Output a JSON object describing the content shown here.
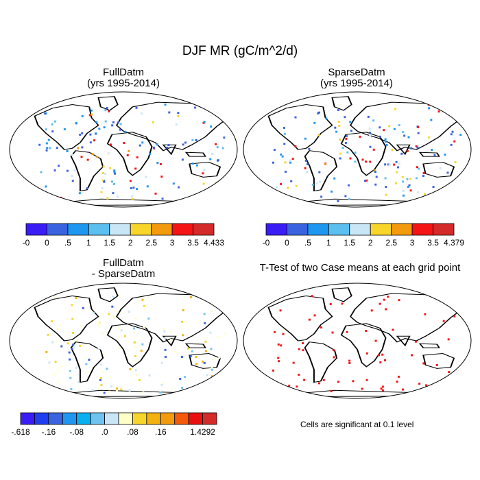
{
  "page": {
    "title": "DJF MR (gC/m^2/d)"
  },
  "panels": [
    {
      "id": "full",
      "title_line1": "FullDatm",
      "title_line2": "(yrs 1995-2014)"
    },
    {
      "id": "sparse",
      "title_line1": "SparseDatm",
      "title_line2": "(yrs 1995-2014)"
    },
    {
      "id": "diff",
      "title_line1": "FullDatm",
      "title_line2": "- SparseDatm"
    },
    {
      "id": "ttest",
      "title_line1": "T-Test of two Case means at each grid point",
      "title_line2": ""
    }
  ],
  "colorbars": [
    {
      "id": "cb-full",
      "colors": [
        "#3a1cf5",
        "#3a63e0",
        "#1f96f0",
        "#5bbfef",
        "#c8e6f5",
        "#f7d52a",
        "#f49a0d",
        "#f41414",
        "#d42a2a"
      ],
      "labels": [
        "-0",
        "0",
        ".5",
        "1",
        "1.5",
        "2",
        "2.5",
        "3",
        "3.5",
        "4.433"
      ]
    },
    {
      "id": "cb-sparse",
      "colors": [
        "#3a1cf5",
        "#3a63e0",
        "#1f96f0",
        "#5bbfef",
        "#c8e6f5",
        "#f7d52a",
        "#f49a0d",
        "#f41414",
        "#d42a2a"
      ],
      "labels": [
        "-0",
        "0",
        ".5",
        "1",
        "1.5",
        "2",
        "2.5",
        "3",
        "3.5",
        "4.379"
      ]
    },
    {
      "id": "cb-diff",
      "colors": [
        "#3a1cf5",
        "#1e3ef0",
        "#3a63e0",
        "#1f96f0",
        "#09b0ef",
        "#6ec4ee",
        "#c8e6f5",
        "#ffffc8",
        "#f7d52a",
        "#f4b20f",
        "#f49a0d",
        "#f45a0a",
        "#e81010",
        "#d42a2a"
      ],
      "labels": [
        "-.618",
        "",
        "-.16",
        "",
        "-.08",
        "",
        ".0",
        "",
        ".08",
        "",
        ".16",
        "",
        "",
        "1.4292"
      ]
    }
  ],
  "note": "Cells are significant at 0.1 level"
}
